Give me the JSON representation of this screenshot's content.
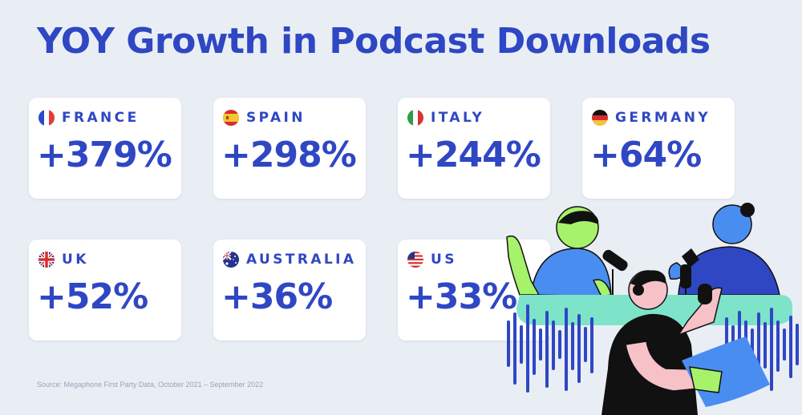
{
  "title": "YOY Growth in Podcast Downloads",
  "cards": [
    {
      "country": "FRANCE",
      "value": "+379%",
      "flag": "france-flag-icon"
    },
    {
      "country": "SPAIN",
      "value": "+298%",
      "flag": "spain-flag-icon"
    },
    {
      "country": "ITALY",
      "value": "+244%",
      "flag": "italy-flag-icon"
    },
    {
      "country": "GERMANY",
      "value": "+64%",
      "flag": "germany-flag-icon"
    },
    {
      "country": "UK",
      "value": "+52%",
      "flag": "uk-flag-icon"
    },
    {
      "country": "AUSTRALIA",
      "value": "+36%",
      "flag": "australia-flag-icon"
    },
    {
      "country": "US",
      "value": "+33%",
      "flag": "us-flag-icon"
    }
  ],
  "source": "Source: Megaphone First Party Data, October 2021 – September 2022",
  "colors": {
    "accent": "#2f47c3",
    "background": "#e9eef5",
    "card": "#ffffff",
    "illustration_blue": "#4a8df0",
    "illustration_green": "#a6f26b",
    "illustration_mint": "#7de3c9",
    "illustration_dark_blue": "#2f47c3"
  }
}
